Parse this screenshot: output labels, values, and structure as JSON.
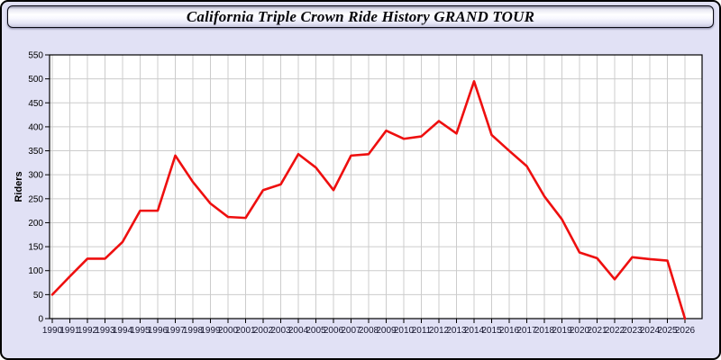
{
  "header": {
    "title": "California Triple Crown Ride History GRAND TOUR"
  },
  "chart_data": {
    "type": "line",
    "title": "California Triple Crown Ride History GRAND TOUR",
    "xlabel": "",
    "ylabel": "Riders",
    "ylim": [
      0,
      550
    ],
    "ytick_step": 50,
    "grid": true,
    "legend_position": "none",
    "line_color": "#ee0f0f",
    "plot_bg": "#ffffff",
    "grid_color": "#cccccc",
    "frame_color": "#000000",
    "tick_label_color": "#15152e",
    "categories": [
      1990,
      1991,
      1992,
      1993,
      1994,
      1995,
      1996,
      1997,
      1998,
      1999,
      2000,
      2001,
      2002,
      2003,
      2004,
      2005,
      2006,
      2007,
      2008,
      2009,
      2010,
      2011,
      2012,
      2013,
      2014,
      2015,
      2016,
      2017,
      2018,
      2019,
      2020,
      2021,
      2022,
      2023,
      2024,
      2025,
      2026
    ],
    "series": [
      {
        "name": "Riders",
        "values": [
          50,
          88,
          125,
          125,
          160,
          225,
          225,
          340,
          285,
          240,
          212,
          210,
          268,
          280,
          343,
          315,
          268,
          340,
          343,
          392,
          375,
          380,
          412,
          386,
          495,
          383,
          350,
          318,
          255,
          207,
          138,
          126,
          82,
          128,
          124,
          121,
          0
        ]
      }
    ]
  }
}
